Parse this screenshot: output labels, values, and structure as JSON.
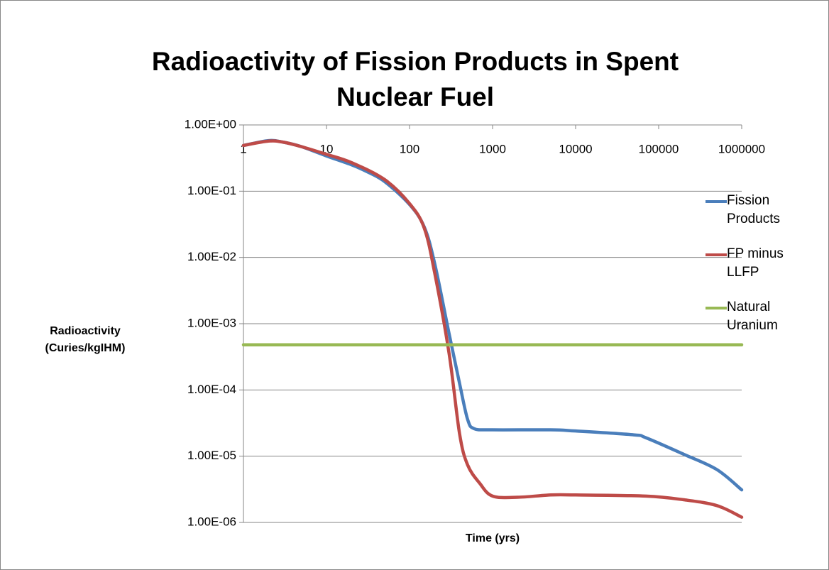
{
  "chart_data": {
    "type": "line",
    "title": "Radioactivity of Fission Products in Spent Nuclear Fuel",
    "x_label": "Time (yrs)",
    "y_label": "Radioactivity (Curies/kgIHM)",
    "xscale": "log",
    "yscale": "log",
    "xlim": [
      1,
      1000000
    ],
    "xticks": [
      1,
      10,
      100,
      1000,
      10000,
      100000,
      1000000
    ],
    "ylim": [
      1e-06,
      1
    ],
    "yticks": [
      {
        "value": 1e-06,
        "label": "1.00E-06"
      },
      {
        "value": 1e-05,
        "label": "1.00E-05"
      },
      {
        "value": 0.0001,
        "label": "1.00E-04"
      },
      {
        "value": 0.001,
        "label": "1.00E-03"
      },
      {
        "value": 0.01,
        "label": "1.00E-02"
      },
      {
        "value": 0.1,
        "label": "1.00E-01"
      },
      {
        "value": 1,
        "label": "1.00E+00"
      }
    ],
    "grid": true,
    "legend": "right",
    "series": [
      {
        "name": "Fission Products",
        "color": "#4a7ebb",
        "x": [
          1,
          2,
          3,
          5,
          10,
          20,
          30,
          50,
          100,
          150,
          200,
          300,
          400,
          500,
          600,
          1000,
          5000,
          10000,
          50000,
          70000,
          200000,
          500000,
          1000000
        ],
        "values": [
          0.49,
          0.58,
          0.55,
          0.47,
          0.34,
          0.25,
          0.2,
          0.14,
          0.063,
          0.029,
          0.0083,
          0.0007,
          0.000126,
          3.6e-05,
          2.6e-05,
          2.5e-05,
          2.5e-05,
          2.4e-05,
          2.1e-05,
          1.9e-05,
          1.07e-05,
          6.3e-06,
          3.1e-06
        ]
      },
      {
        "name": "FP minus LLFP",
        "color": "#be4b48",
        "x": [
          1,
          2,
          3,
          5,
          10,
          20,
          50,
          100,
          150,
          200,
          300,
          400,
          500,
          700,
          1000,
          2000,
          5000,
          10000,
          70000,
          200000,
          500000,
          1000000
        ],
        "values": [
          0.49,
          0.57,
          0.55,
          0.47,
          0.36,
          0.27,
          0.15,
          0.065,
          0.028,
          0.006,
          0.00035,
          2.2e-05,
          7.4e-06,
          3.9e-06,
          2.5e-06,
          2.4e-06,
          2.6e-06,
          2.6e-06,
          2.5e-06,
          2.2e-06,
          1.8e-06,
          1.2e-06
        ]
      },
      {
        "name": "Natural Uranium",
        "color": "#98b954",
        "x": [
          1,
          1000000
        ],
        "values": [
          0.00048,
          0.00048
        ]
      }
    ]
  }
}
